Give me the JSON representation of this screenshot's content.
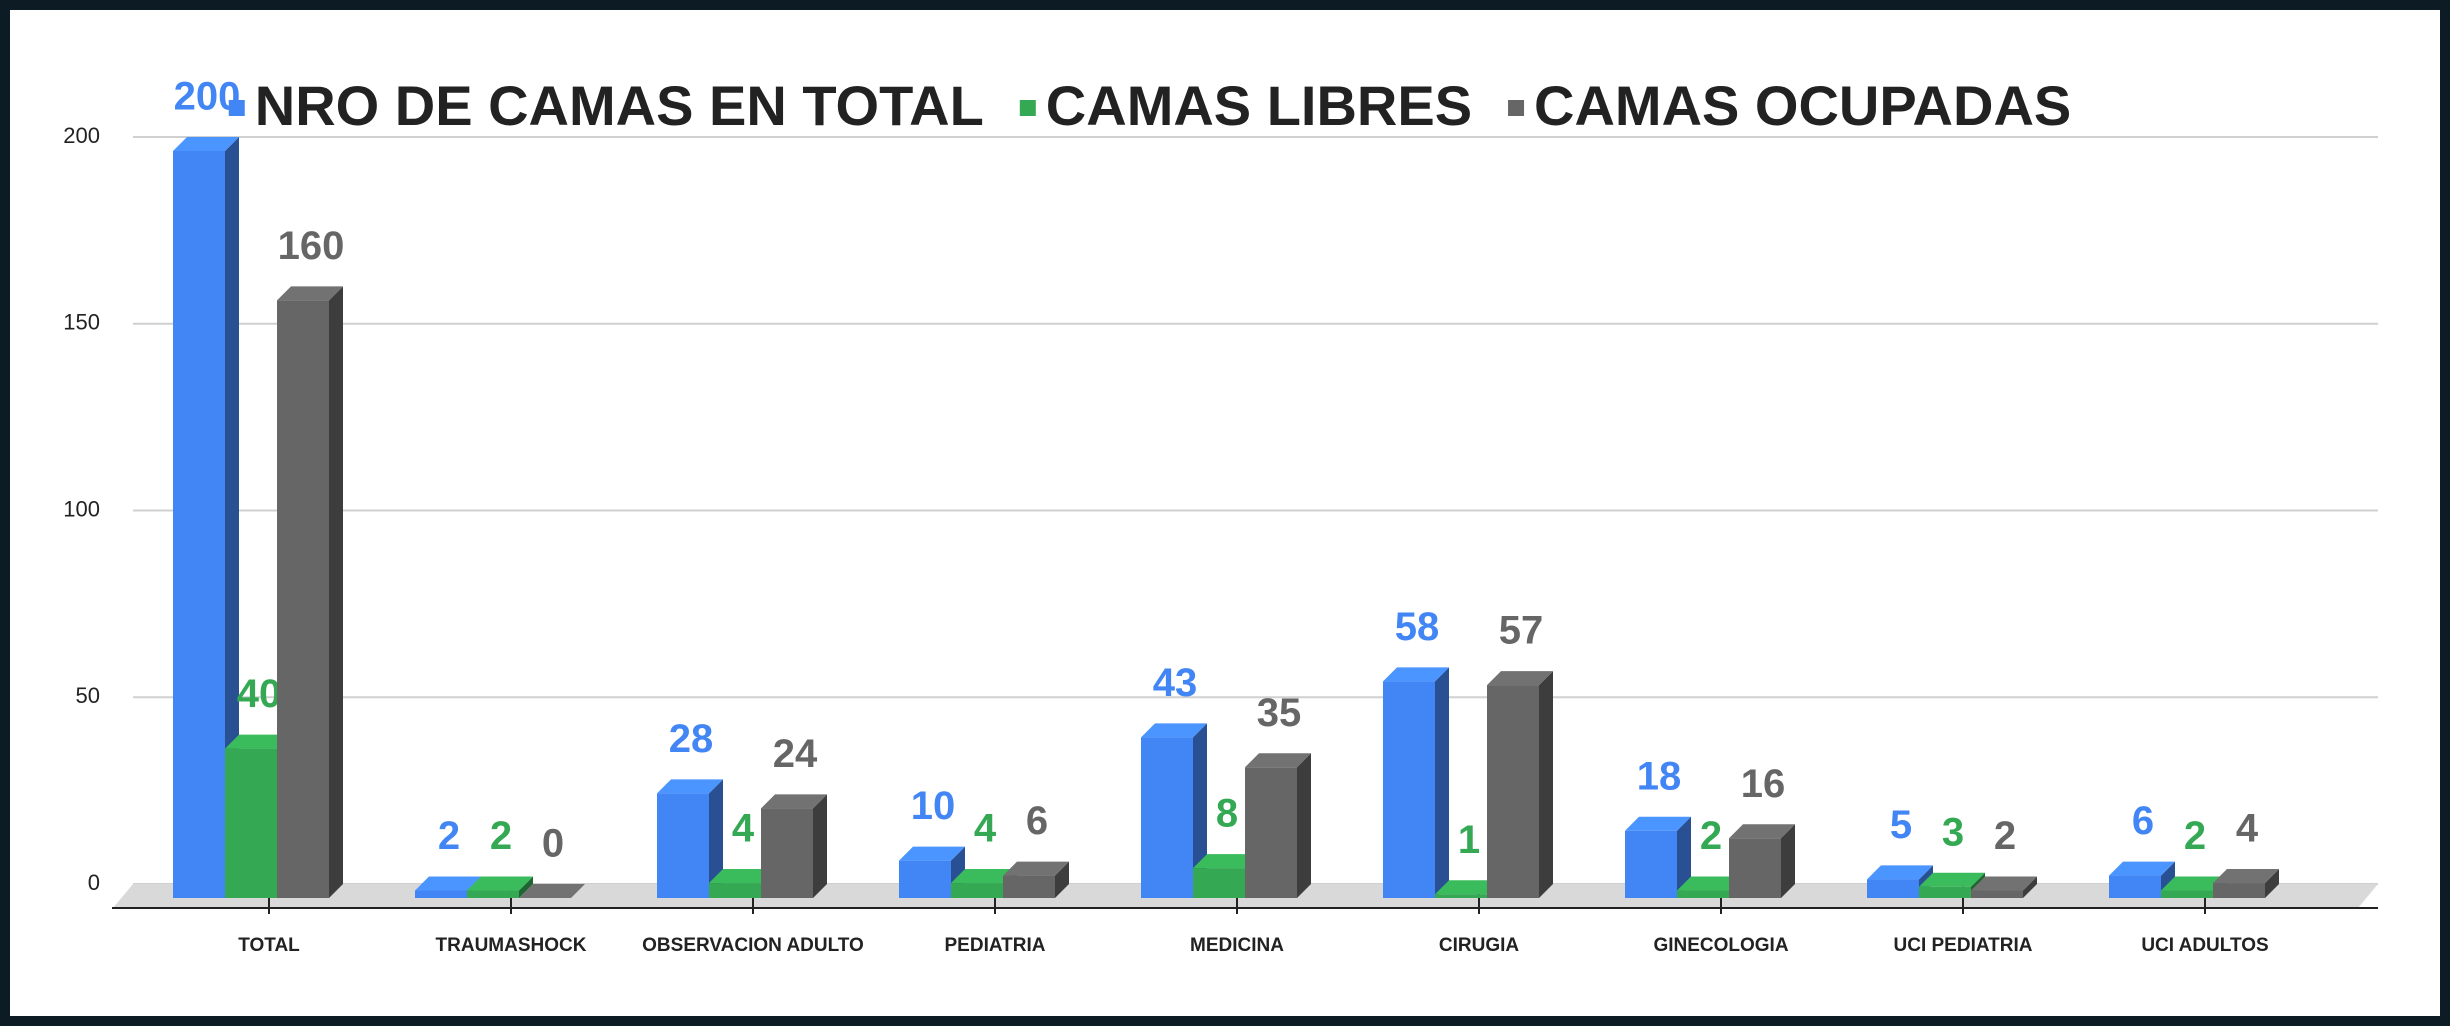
{
  "chart_data": {
    "type": "bar3d",
    "categories": [
      "TOTAL",
      "TRAUMASHOCK",
      "OBSERVACION ADULTO",
      "PEDIATRIA",
      "MEDICINA",
      "CIRUGIA",
      "GINECOLOGIA",
      "UCI PEDIATRIA",
      "UCI ADULTOS"
    ],
    "series": [
      {
        "name": "NRO DE CAMAS EN TOTAL",
        "color": "#4285f4",
        "values": [
          200,
          2,
          28,
          10,
          43,
          58,
          18,
          5,
          6
        ]
      },
      {
        "name": "CAMAS LIBRES",
        "color": "#34a853",
        "values": [
          40,
          2,
          4,
          4,
          8,
          1,
          2,
          3,
          2
        ]
      },
      {
        "name": "CAMAS OCUPADAS",
        "color": "#666666",
        "values": [
          160,
          0,
          24,
          6,
          35,
          57,
          16,
          2,
          4
        ]
      }
    ],
    "ylim": [
      0,
      200
    ],
    "yticks": [
      0,
      50,
      100,
      150,
      200
    ],
    "grid": true,
    "legend": "top"
  }
}
